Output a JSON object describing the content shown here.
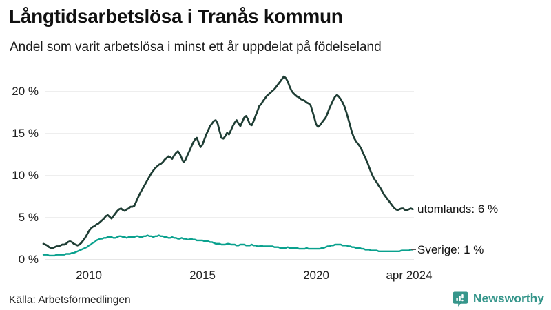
{
  "header": {
    "title": "Långtidsarbetslösa i Tranås kommun",
    "subtitle": "Andel som varit arbetslösa i minst ett år uppdelat på födelseland"
  },
  "footer": {
    "source": "Källa: Arbetsförmedlingen",
    "brand": "Newsworthy"
  },
  "colors": {
    "utomlands_line": "#1e3d34",
    "sverige_line": "#0aa18e",
    "grid": "#e4e4e4",
    "axis_zero": "#d6d6d6",
    "brand": "#36968b",
    "leader_dash": "#555555"
  },
  "chart_data": {
    "type": "line",
    "title": "Långtidsarbetslösa i Tranås kommun",
    "subtitle": "Andel som varit arbetslösa i minst ett år uppdelat på födelseland",
    "unit": "%",
    "x_time": {
      "start": "2008-01",
      "end": "2024-04",
      "step": "monthly"
    },
    "ylim": [
      0,
      22
    ],
    "grid": "horizontal",
    "legend_position": "end-of-line-labels",
    "yticks": [
      {
        "value": 0,
        "label": "0 %"
      },
      {
        "value": 5,
        "label": "5 %"
      },
      {
        "value": 10,
        "label": "10 %"
      },
      {
        "value": 15,
        "label": "15 %"
      },
      {
        "value": 20,
        "label": "20 %"
      }
    ],
    "xticks": [
      {
        "value": 2010,
        "label": "2010"
      },
      {
        "value": 2015,
        "label": "2015"
      },
      {
        "value": 2020,
        "label": "2020"
      },
      {
        "value": 2024.29,
        "label": "apr 2024"
      }
    ],
    "series": [
      {
        "name": "utomlands",
        "end_label": "utomlands: 6 %",
        "end_value": 6,
        "color": "#1e3d34",
        "values": [
          1.9,
          1.8,
          1.7,
          1.5,
          1.4,
          1.4,
          1.5,
          1.6,
          1.6,
          1.7,
          1.8,
          1.8,
          1.9,
          2.1,
          2.2,
          2.1,
          1.9,
          1.8,
          1.7,
          1.8,
          2.0,
          2.3,
          2.6,
          3.0,
          3.4,
          3.7,
          3.9,
          4.0,
          4.2,
          4.3,
          4.5,
          4.7,
          4.9,
          5.2,
          5.3,
          5.1,
          4.9,
          5.2,
          5.5,
          5.8,
          6.0,
          6.1,
          5.9,
          5.8,
          6.0,
          6.1,
          6.3,
          6.3,
          6.4,
          6.9,
          7.4,
          7.9,
          8.3,
          8.7,
          9.1,
          9.5,
          9.9,
          10.3,
          10.6,
          10.9,
          11.1,
          11.3,
          11.4,
          11.6,
          11.9,
          12.1,
          12.3,
          12.2,
          12.0,
          12.4,
          12.7,
          12.9,
          12.6,
          12.1,
          11.6,
          11.9,
          12.4,
          12.9,
          13.4,
          13.9,
          14.3,
          14.5,
          13.9,
          13.4,
          13.7,
          14.3,
          14.9,
          15.4,
          15.9,
          16.2,
          16.5,
          16.6,
          16.2,
          15.3,
          14.5,
          14.4,
          14.7,
          15.1,
          14.9,
          15.4,
          15.9,
          16.3,
          16.6,
          16.2,
          15.9,
          16.4,
          16.9,
          17.1,
          16.7,
          16.1,
          16.0,
          16.5,
          17.1,
          17.7,
          18.3,
          18.5,
          18.9,
          19.2,
          19.5,
          19.7,
          19.9,
          20.1,
          20.3,
          20.6,
          20.9,
          21.2,
          21.5,
          21.8,
          21.6,
          21.2,
          20.6,
          20.1,
          19.8,
          19.6,
          19.4,
          19.3,
          19.1,
          19.0,
          18.9,
          18.7,
          18.6,
          18.4,
          17.7,
          16.9,
          16.1,
          15.8,
          16.0,
          16.3,
          16.6,
          16.9,
          17.4,
          18.0,
          18.5,
          19.0,
          19.4,
          19.6,
          19.4,
          19.1,
          18.7,
          18.2,
          17.5,
          16.7,
          15.9,
          15.1,
          14.5,
          14.1,
          13.8,
          13.5,
          13.1,
          12.6,
          12.1,
          11.6,
          11.0,
          10.4,
          9.9,
          9.5,
          9.2,
          8.8,
          8.5,
          8.1,
          7.7,
          7.4,
          7.1,
          6.8,
          6.5,
          6.2,
          6.0,
          5.9,
          6.0,
          6.1,
          6.1,
          5.9,
          5.9,
          6.0,
          6.1,
          6.0
        ]
      },
      {
        "name": "Sverige",
        "end_label": "Sverige: 1 %",
        "end_value": 1,
        "color": "#0aa18e",
        "values": [
          0.6,
          0.6,
          0.6,
          0.5,
          0.5,
          0.5,
          0.5,
          0.6,
          0.6,
          0.6,
          0.6,
          0.6,
          0.7,
          0.7,
          0.7,
          0.8,
          0.8,
          0.9,
          1.0,
          1.1,
          1.2,
          1.3,
          1.4,
          1.5,
          1.7,
          1.8,
          2.0,
          2.1,
          2.3,
          2.4,
          2.5,
          2.5,
          2.6,
          2.6,
          2.7,
          2.7,
          2.7,
          2.6,
          2.6,
          2.7,
          2.8,
          2.8,
          2.7,
          2.7,
          2.6,
          2.7,
          2.7,
          2.7,
          2.7,
          2.8,
          2.8,
          2.7,
          2.7,
          2.8,
          2.8,
          2.9,
          2.8,
          2.8,
          2.7,
          2.8,
          2.8,
          2.9,
          2.8,
          2.8,
          2.7,
          2.7,
          2.6,
          2.6,
          2.7,
          2.6,
          2.6,
          2.5,
          2.5,
          2.6,
          2.5,
          2.5,
          2.4,
          2.4,
          2.5,
          2.4,
          2.4,
          2.3,
          2.3,
          2.3,
          2.3,
          2.2,
          2.2,
          2.2,
          2.1,
          2.1,
          2.0,
          1.9,
          1.9,
          1.9,
          1.8,
          1.8,
          1.8,
          1.9,
          1.9,
          1.8,
          1.8,
          1.8,
          1.7,
          1.7,
          1.8,
          1.8,
          1.8,
          1.7,
          1.7,
          1.7,
          1.8,
          1.7,
          1.7,
          1.6,
          1.6,
          1.7,
          1.6,
          1.6,
          1.6,
          1.6,
          1.6,
          1.6,
          1.5,
          1.5,
          1.5,
          1.4,
          1.4,
          1.4,
          1.4,
          1.5,
          1.4,
          1.4,
          1.4,
          1.4,
          1.4,
          1.3,
          1.3,
          1.3,
          1.3,
          1.4,
          1.3,
          1.3,
          1.3,
          1.3,
          1.3,
          1.3,
          1.3,
          1.4,
          1.4,
          1.5,
          1.6,
          1.6,
          1.7,
          1.7,
          1.8,
          1.8,
          1.8,
          1.8,
          1.7,
          1.7,
          1.7,
          1.6,
          1.6,
          1.5,
          1.5,
          1.4,
          1.4,
          1.4,
          1.3,
          1.3,
          1.2,
          1.2,
          1.2,
          1.1,
          1.1,
          1.1,
          1.1,
          1.0,
          1.0,
          1.0,
          1.0,
          1.0,
          1.0,
          1.0,
          1.0,
          1.0,
          1.0,
          1.0,
          1.0,
          1.1,
          1.1,
          1.1,
          1.1,
          1.1,
          1.2,
          1.2
        ]
      }
    ]
  }
}
